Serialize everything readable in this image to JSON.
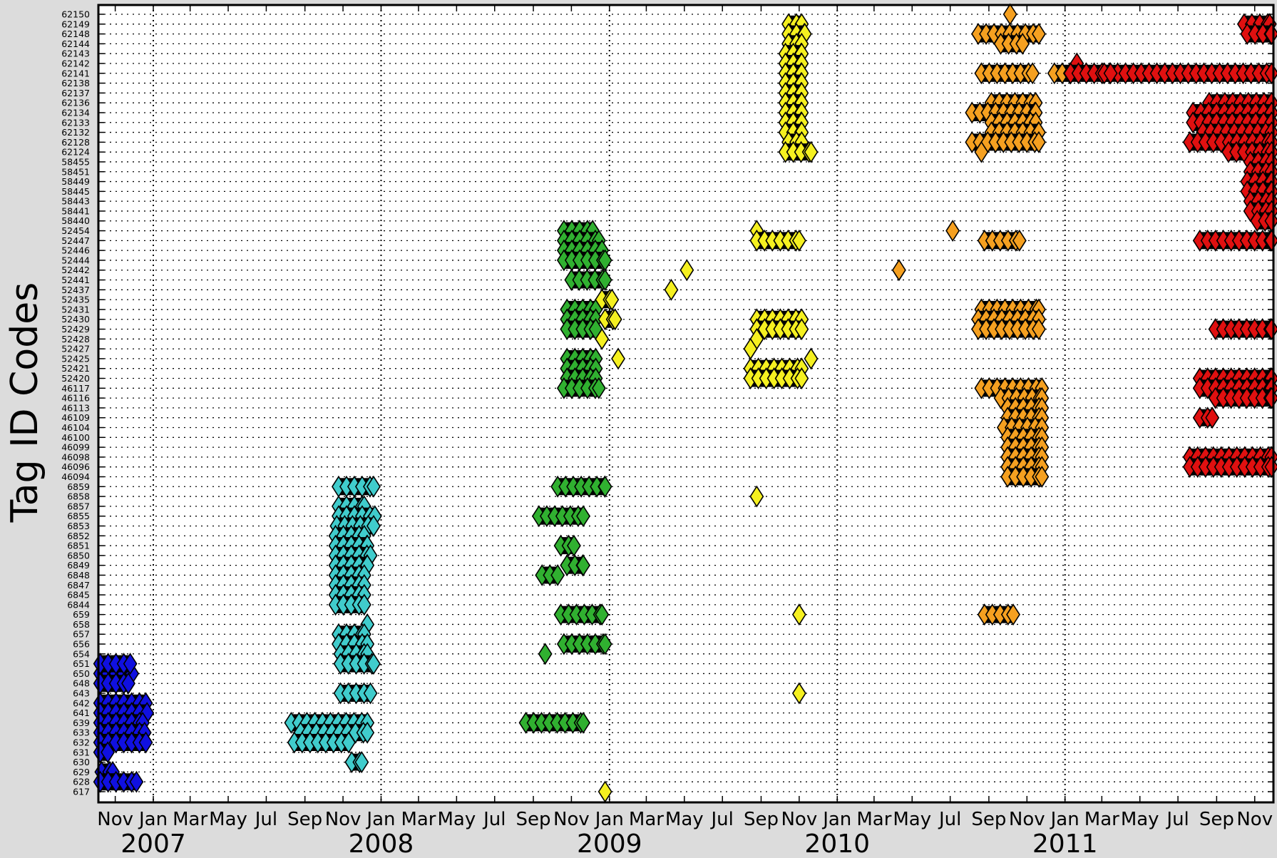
{
  "chart_data": {
    "type": "scatter",
    "ylabel": "Tag ID Codes",
    "xlabel": "",
    "title": "",
    "grid": true,
    "x_axis": {
      "range": [
        "2006-10-05",
        "2011-12-01"
      ],
      "month_ticks": [
        {
          "date": "2006-11-01",
          "label": "Nov"
        },
        {
          "date": "2007-01-01",
          "label": "Jan"
        },
        {
          "date": "2007-03-01",
          "label": "Mar"
        },
        {
          "date": "2007-05-01",
          "label": "May"
        },
        {
          "date": "2007-07-01",
          "label": "Jul"
        },
        {
          "date": "2007-09-01",
          "label": "Sep"
        },
        {
          "date": "2007-11-01",
          "label": "Nov"
        },
        {
          "date": "2008-01-01",
          "label": "Jan"
        },
        {
          "date": "2008-03-01",
          "label": "Mar"
        },
        {
          "date": "2008-05-01",
          "label": "May"
        },
        {
          "date": "2008-07-01",
          "label": "Jul"
        },
        {
          "date": "2008-09-01",
          "label": "Sep"
        },
        {
          "date": "2008-11-01",
          "label": "Nov"
        },
        {
          "date": "2009-01-01",
          "label": "Jan"
        },
        {
          "date": "2009-03-01",
          "label": "Mar"
        },
        {
          "date": "2009-05-01",
          "label": "May"
        },
        {
          "date": "2009-07-01",
          "label": "Jul"
        },
        {
          "date": "2009-09-01",
          "label": "Sep"
        },
        {
          "date": "2009-11-01",
          "label": "Nov"
        },
        {
          "date": "2010-01-01",
          "label": "Jan"
        },
        {
          "date": "2010-03-01",
          "label": "Mar"
        },
        {
          "date": "2010-05-01",
          "label": "May"
        },
        {
          "date": "2010-07-01",
          "label": "Jul"
        },
        {
          "date": "2010-09-01",
          "label": "Sep"
        },
        {
          "date": "2010-11-01",
          "label": "Nov"
        },
        {
          "date": "2011-01-01",
          "label": "Jan"
        },
        {
          "date": "2011-03-01",
          "label": "Mar"
        },
        {
          "date": "2011-05-01",
          "label": "May"
        },
        {
          "date": "2011-07-01",
          "label": "Jul"
        },
        {
          "date": "2011-09-01",
          "label": "Sep"
        },
        {
          "date": "2011-11-01",
          "label": "Nov"
        }
      ],
      "year_labels": [
        {
          "date": "2007-01-01",
          "label": "2007"
        },
        {
          "date": "2008-01-01",
          "label": "2008"
        },
        {
          "date": "2009-01-01",
          "label": "2009"
        },
        {
          "date": "2010-01-01",
          "label": "2010"
        },
        {
          "date": "2011-01-01",
          "label": "2011"
        }
      ],
      "year_boundaries": [
        "2007-01-01",
        "2008-01-01",
        "2009-01-01",
        "2010-01-01",
        "2011-01-01"
      ]
    },
    "categories": [
      "617",
      "628",
      "629",
      "630",
      "631",
      "632",
      "633",
      "639",
      "641",
      "642",
      "643",
      "648",
      "650",
      "651",
      "654",
      "656",
      "657",
      "658",
      "659",
      "6844",
      "6845",
      "6847",
      "6848",
      "6849",
      "6850",
      "6851",
      "6852",
      "6853",
      "6855",
      "6857",
      "6858",
      "6859",
      "46094",
      "46096",
      "46098",
      "46099",
      "46100",
      "46104",
      "46109",
      "46113",
      "46116",
      "46117",
      "52420",
      "52421",
      "52425",
      "52427",
      "52428",
      "52429",
      "52430",
      "52431",
      "52435",
      "52437",
      "52441",
      "52442",
      "52444",
      "52446",
      "52447",
      "52454",
      "58440",
      "58441",
      "58443",
      "58445",
      "58449",
      "58451",
      "58455",
      "62124",
      "62128",
      "62132",
      "62133",
      "62134",
      "62136",
      "62137",
      "62138",
      "62141",
      "62142",
      "62143",
      "62144",
      "62148",
      "62149",
      "62150"
    ],
    "colors": {
      "2007": "#1010e0",
      "2008": "#40cccc",
      "2009": "#30b030",
      "2010": "#f5f020",
      "2011": "#f5a020",
      "2012": "#e01010"
    },
    "series": [
      {
        "color_key": "2007",
        "segments": [
          [
            "650",
            "2006-10-08",
            "2006-11-28"
          ],
          [
            "651",
            "2006-10-08",
            "2006-11-25"
          ],
          [
            "648",
            "2006-10-08",
            "2006-11-22"
          ],
          [
            "642",
            "2006-10-08",
            "2006-12-20"
          ],
          [
            "641",
            "2006-10-08",
            "2006-12-22"
          ],
          [
            "639",
            "2006-10-08",
            "2006-12-15"
          ],
          [
            "633",
            "2006-10-08",
            "2006-12-18"
          ],
          [
            "632",
            "2006-10-08",
            "2006-12-20"
          ],
          [
            "631",
            "2006-10-08",
            "2006-10-20"
          ],
          [
            "629",
            "2006-10-10",
            "2006-10-28"
          ],
          [
            "628",
            "2006-10-08",
            "2006-12-05"
          ]
        ]
      },
      {
        "color_key": "2008",
        "segments": [
          [
            "6859",
            "2007-10-25",
            "2007-12-20"
          ],
          [
            "6857",
            "2007-10-25",
            "2007-12-05"
          ],
          [
            "6855",
            "2007-10-25",
            "2007-12-22"
          ],
          [
            "6853",
            "2007-10-22",
            "2007-12-20"
          ],
          [
            "6852",
            "2007-10-20",
            "2007-12-05"
          ],
          [
            "6851",
            "2007-10-20",
            "2007-12-10"
          ],
          [
            "6850",
            "2007-10-20",
            "2007-12-15"
          ],
          [
            "6849",
            "2007-10-20",
            "2007-12-10"
          ],
          [
            "6848",
            "2007-10-20",
            "2007-12-05"
          ],
          [
            "6847",
            "2007-10-20",
            "2007-12-05"
          ],
          [
            "6845",
            "2007-10-20",
            "2007-12-05"
          ],
          [
            "6844",
            "2007-10-20",
            "2007-12-05"
          ],
          [
            "658",
            "2007-12-10",
            "2007-12-10"
          ],
          [
            "657",
            "2007-10-25",
            "2007-12-05"
          ],
          [
            "656",
            "2007-10-25",
            "2007-12-10"
          ],
          [
            "654",
            "2007-10-28",
            "2007-12-10"
          ],
          [
            "651",
            "2007-10-28",
            "2007-12-20"
          ],
          [
            "643",
            "2007-10-28",
            "2007-12-15"
          ],
          [
            "639",
            "2007-08-10",
            "2007-12-10"
          ],
          [
            "633",
            "2007-08-25",
            "2007-12-10"
          ],
          [
            "632",
            "2007-08-15",
            "2007-11-10"
          ],
          [
            "630",
            "2007-11-15",
            "2007-12-01"
          ]
        ]
      },
      {
        "color_key": "2009",
        "segments": [
          [
            "52454",
            "2008-10-20",
            "2008-12-05"
          ],
          [
            "52447",
            "2008-10-20",
            "2008-12-15"
          ],
          [
            "52446",
            "2008-10-20",
            "2008-12-20"
          ],
          [
            "52444",
            "2008-10-20",
            "2008-12-25"
          ],
          [
            "52441",
            "2008-11-01",
            "2008-12-25"
          ],
          [
            "52431",
            "2008-10-25",
            "2008-12-10"
          ],
          [
            "52430",
            "2008-10-25",
            "2008-12-10"
          ],
          [
            "52429",
            "2008-10-25",
            "2008-12-10"
          ],
          [
            "52425",
            "2008-10-25",
            "2008-12-10"
          ],
          [
            "52421",
            "2008-10-25",
            "2008-12-10"
          ],
          [
            "52420",
            "2008-10-25",
            "2008-12-10"
          ],
          [
            "46117",
            "2008-10-20",
            "2008-12-15"
          ],
          [
            "6859",
            "2008-10-10",
            "2008-12-25"
          ],
          [
            "6855",
            "2008-09-10",
            "2008-11-20"
          ],
          [
            "6851",
            "2008-10-15",
            "2008-11-05"
          ],
          [
            "6849",
            "2008-10-25",
            "2008-11-20"
          ],
          [
            "6848",
            "2008-09-15",
            "2008-10-10"
          ],
          [
            "659",
            "2008-10-15",
            "2008-12-20"
          ],
          [
            "656",
            "2008-10-20",
            "2008-12-25"
          ],
          [
            "654",
            "2008-09-20",
            "2008-09-20"
          ],
          [
            "639",
            "2008-08-20",
            "2008-11-20"
          ]
        ]
      },
      {
        "color_key": "2010",
        "segments": [
          [
            "52437",
            "2009-04-10",
            "2009-04-10"
          ],
          [
            "52442",
            "2009-05-05",
            "2009-05-05"
          ],
          [
            "52435",
            "2008-12-20",
            "2009-01-05"
          ],
          [
            "52430",
            "2008-12-25",
            "2009-01-10"
          ],
          [
            "52428",
            "2008-12-20",
            "2008-12-20"
          ],
          [
            "52425",
            "2009-01-15",
            "2009-01-15"
          ],
          [
            "617",
            "2008-12-25",
            "2008-12-25"
          ],
          [
            "62149",
            "2009-10-15",
            "2009-11-05"
          ],
          [
            "62148",
            "2009-10-15",
            "2009-11-10"
          ],
          [
            "62144",
            "2009-10-15",
            "2009-11-05"
          ],
          [
            "62143",
            "2009-10-10",
            "2009-11-05"
          ],
          [
            "62142",
            "2009-10-10",
            "2009-11-05"
          ],
          [
            "62141",
            "2009-10-10",
            "2009-11-05"
          ],
          [
            "62138",
            "2009-10-10",
            "2009-11-05"
          ],
          [
            "62137",
            "2009-10-10",
            "2009-11-05"
          ],
          [
            "62136",
            "2009-10-10",
            "2009-11-05"
          ],
          [
            "62134",
            "2009-10-10",
            "2009-11-05"
          ],
          [
            "62133",
            "2009-10-10",
            "2009-11-05"
          ],
          [
            "62132",
            "2009-10-10",
            "2009-11-05"
          ],
          [
            "62128",
            "2009-10-15",
            "2009-11-05"
          ],
          [
            "62124",
            "2009-10-10",
            "2009-11-20"
          ],
          [
            "52454",
            "2009-08-25",
            "2009-08-25"
          ],
          [
            "52447",
            "2009-08-25",
            "2009-11-01"
          ],
          [
            "52430",
            "2009-08-25",
            "2009-11-05"
          ],
          [
            "52429",
            "2009-08-25",
            "2009-11-05"
          ],
          [
            "52428",
            "2009-08-25",
            "2009-08-25"
          ],
          [
            "52427",
            "2009-08-15",
            "2009-08-15"
          ],
          [
            "52425",
            "2009-11-20",
            "2009-11-20"
          ],
          [
            "52421",
            "2009-08-15",
            "2009-11-05"
          ],
          [
            "52420",
            "2009-08-15",
            "2009-11-05"
          ],
          [
            "6858",
            "2009-08-25",
            "2009-08-25"
          ],
          [
            "659",
            "2009-11-01",
            "2009-11-01"
          ],
          [
            "643",
            "2009-11-01",
            "2009-11-01"
          ]
        ]
      },
      {
        "color_key": "2011",
        "segments": [
          [
            "52454",
            "2010-07-05",
            "2010-07-05"
          ],
          [
            "52442",
            "2010-04-10",
            "2010-04-10"
          ],
          [
            "52447",
            "2010-08-25",
            "2010-10-20"
          ],
          [
            "62150",
            "2010-10-05",
            "2010-10-05"
          ],
          [
            "62148",
            "2010-08-15",
            "2010-11-20"
          ],
          [
            "62144",
            "2010-09-20",
            "2010-10-25"
          ],
          [
            "62141",
            "2010-08-20",
            "2010-11-10"
          ],
          [
            "62136",
            "2010-09-05",
            "2010-11-15"
          ],
          [
            "62134",
            "2010-08-05",
            "2010-11-15"
          ],
          [
            "62133",
            "2010-09-05",
            "2010-11-15"
          ],
          [
            "62132",
            "2010-09-05",
            "2010-11-20"
          ],
          [
            "62128",
            "2010-08-05",
            "2010-11-20"
          ],
          [
            "62124",
            "2010-08-20",
            "2010-08-20"
          ],
          [
            "52431",
            "2010-08-20",
            "2010-11-20"
          ],
          [
            "52430",
            "2010-08-15",
            "2010-11-20"
          ],
          [
            "52429",
            "2010-08-15",
            "2010-11-20"
          ],
          [
            "46117",
            "2010-08-20",
            "2010-11-25"
          ],
          [
            "46116",
            "2010-09-20",
            "2010-11-25"
          ],
          [
            "46113",
            "2010-10-01",
            "2010-11-25"
          ],
          [
            "46109",
            "2010-10-01",
            "2010-11-25"
          ],
          [
            "46104",
            "2010-09-25",
            "2010-11-25"
          ],
          [
            "46100",
            "2010-10-01",
            "2010-11-25"
          ],
          [
            "46099",
            "2010-10-01",
            "2010-11-25"
          ],
          [
            "46098",
            "2010-10-01",
            "2010-11-25"
          ],
          [
            "46096",
            "2010-10-01",
            "2010-11-25"
          ],
          [
            "46094",
            "2010-10-01",
            "2010-11-25"
          ],
          [
            "659",
            "2010-08-25",
            "2010-10-10"
          ],
          [
            "62141",
            "2010-12-15",
            "2011-01-10"
          ]
        ]
      },
      {
        "color_key": "2012",
        "segments": [
          [
            "62149",
            "2011-10-15",
            "2011-11-25"
          ],
          [
            "62148",
            "2011-10-20",
            "2011-11-28"
          ],
          [
            "62142",
            "2011-01-20",
            "2011-01-20"
          ],
          [
            "62141",
            "2011-01-10",
            "2011-11-28"
          ],
          [
            "62136",
            "2011-08-20",
            "2011-11-28"
          ],
          [
            "62134",
            "2011-07-25",
            "2011-11-28"
          ],
          [
            "62133",
            "2011-07-25",
            "2011-11-28"
          ],
          [
            "62132",
            "2011-08-10",
            "2011-11-28"
          ],
          [
            "62128",
            "2011-07-20",
            "2011-11-28"
          ],
          [
            "62124",
            "2011-09-20",
            "2011-11-28"
          ],
          [
            "58455",
            "2011-10-25",
            "2011-11-28"
          ],
          [
            "58451",
            "2011-10-25",
            "2011-11-28"
          ],
          [
            "58449",
            "2011-10-20",
            "2011-11-28"
          ],
          [
            "58445",
            "2011-10-20",
            "2011-11-28"
          ],
          [
            "58443",
            "2011-10-25",
            "2011-11-28"
          ],
          [
            "58441",
            "2011-10-25",
            "2011-11-28"
          ],
          [
            "58440",
            "2011-11-05",
            "2011-11-28"
          ],
          [
            "52447",
            "2011-08-05",
            "2011-11-28"
          ],
          [
            "52429",
            "2011-08-30",
            "2011-11-28"
          ],
          [
            "52420",
            "2011-08-05",
            "2011-11-28"
          ],
          [
            "46117",
            "2011-08-05",
            "2011-11-28"
          ],
          [
            "46116",
            "2011-08-30",
            "2011-11-28"
          ],
          [
            "46109",
            "2011-08-05",
            "2011-08-25"
          ],
          [
            "46098",
            "2011-07-20",
            "2011-11-28"
          ],
          [
            "46096",
            "2011-07-20",
            "2011-11-28"
          ],
          [
            "62141",
            "2011-03-05",
            "2011-03-15"
          ]
        ]
      }
    ]
  }
}
